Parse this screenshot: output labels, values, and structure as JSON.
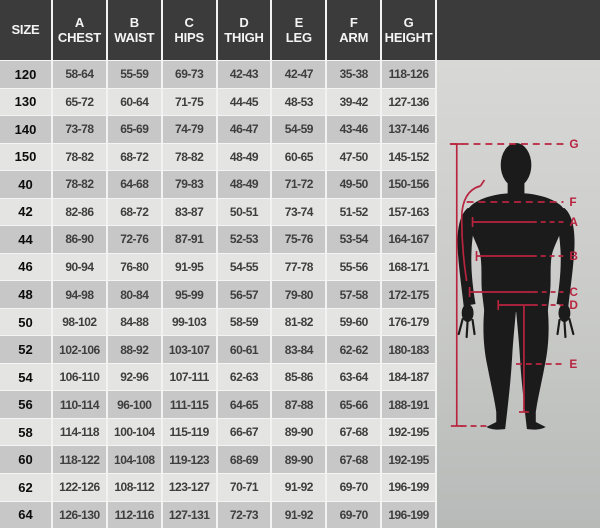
{
  "table": {
    "columns": [
      {
        "letter": "",
        "name": "SIZE"
      },
      {
        "letter": "A",
        "name": "CHEST"
      },
      {
        "letter": "B",
        "name": "WAIST"
      },
      {
        "letter": "C",
        "name": "HIPS"
      },
      {
        "letter": "D",
        "name": "THIGH"
      },
      {
        "letter": "E",
        "name": "LEG"
      },
      {
        "letter": "F",
        "name": "ARM"
      },
      {
        "letter": "G",
        "name": "HEIGHT"
      }
    ],
    "rows": [
      {
        "size": "120",
        "values": [
          "58-64",
          "55-59",
          "69-73",
          "42-43",
          "42-47",
          "35-38",
          "118-126"
        ]
      },
      {
        "size": "130",
        "values": [
          "65-72",
          "60-64",
          "71-75",
          "44-45",
          "48-53",
          "39-42",
          "127-136"
        ]
      },
      {
        "size": "140",
        "values": [
          "73-78",
          "65-69",
          "74-79",
          "46-47",
          "54-59",
          "43-46",
          "137-146"
        ]
      },
      {
        "size": "150",
        "values": [
          "78-82",
          "68-72",
          "78-82",
          "48-49",
          "60-65",
          "47-50",
          "145-152"
        ]
      },
      {
        "size": "40",
        "values": [
          "78-82",
          "64-68",
          "79-83",
          "48-49",
          "71-72",
          "49-50",
          "150-156"
        ]
      },
      {
        "size": "42",
        "values": [
          "82-86",
          "68-72",
          "83-87",
          "50-51",
          "73-74",
          "51-52",
          "157-163"
        ]
      },
      {
        "size": "44",
        "values": [
          "86-90",
          "72-76",
          "87-91",
          "52-53",
          "75-76",
          "53-54",
          "164-167"
        ]
      },
      {
        "size": "46",
        "values": [
          "90-94",
          "76-80",
          "91-95",
          "54-55",
          "77-78",
          "55-56",
          "168-171"
        ]
      },
      {
        "size": "48",
        "values": [
          "94-98",
          "80-84",
          "95-99",
          "56-57",
          "79-80",
          "57-58",
          "172-175"
        ]
      },
      {
        "size": "50",
        "values": [
          "98-102",
          "84-88",
          "99-103",
          "58-59",
          "81-82",
          "59-60",
          "176-179"
        ]
      },
      {
        "size": "52",
        "values": [
          "102-106",
          "88-92",
          "103-107",
          "60-61",
          "83-84",
          "62-62",
          "180-183"
        ]
      },
      {
        "size": "54",
        "values": [
          "106-110",
          "92-96",
          "107-111",
          "62-63",
          "85-86",
          "63-64",
          "184-187"
        ]
      },
      {
        "size": "56",
        "values": [
          "110-114",
          "96-100",
          "111-115",
          "64-65",
          "87-88",
          "65-66",
          "188-191"
        ]
      },
      {
        "size": "58",
        "values": [
          "114-118",
          "100-104",
          "115-119",
          "66-67",
          "89-90",
          "67-68",
          "192-195"
        ]
      },
      {
        "size": "60",
        "values": [
          "118-122",
          "104-108",
          "119-123",
          "68-69",
          "89-90",
          "67-68",
          "192-195"
        ]
      },
      {
        "size": "62",
        "values": [
          "122-126",
          "108-112",
          "123-127",
          "70-71",
          "91-92",
          "69-70",
          "196-199"
        ]
      },
      {
        "size": "64",
        "values": [
          "126-130",
          "112-116",
          "127-131",
          "72-73",
          "91-92",
          "69-70",
          "196-199"
        ]
      }
    ]
  },
  "figure": {
    "markers": [
      {
        "label": "G"
      },
      {
        "label": "F"
      },
      {
        "label": "A"
      },
      {
        "label": "B"
      },
      {
        "label": "C"
      },
      {
        "label": "D"
      },
      {
        "label": "E"
      }
    ]
  },
  "colors": {
    "header_bg": "#3b3b3b",
    "row_dark": "#c7c7c7",
    "row_light": "#e4e4e3",
    "accent_red": "#b8253f",
    "silhouette": "#1b1b1b",
    "separator": "#f2f2f2"
  },
  "chart_data": {
    "type": "table",
    "title": "Garment size chart with body measurement diagram",
    "columns": [
      "SIZE",
      "A CHEST",
      "B WAIST",
      "C HIPS",
      "D THIGH",
      "E LEG",
      "F ARM",
      "G HEIGHT"
    ],
    "rows": [
      [
        "120",
        "58-64",
        "55-59",
        "69-73",
        "42-43",
        "42-47",
        "35-38",
        "118-126"
      ],
      [
        "130",
        "65-72",
        "60-64",
        "71-75",
        "44-45",
        "48-53",
        "39-42",
        "127-136"
      ],
      [
        "140",
        "73-78",
        "65-69",
        "74-79",
        "46-47",
        "54-59",
        "43-46",
        "137-146"
      ],
      [
        "150",
        "78-82",
        "68-72",
        "78-82",
        "48-49",
        "60-65",
        "47-50",
        "145-152"
      ],
      [
        "40",
        "78-82",
        "64-68",
        "79-83",
        "48-49",
        "71-72",
        "49-50",
        "150-156"
      ],
      [
        "42",
        "82-86",
        "68-72",
        "83-87",
        "50-51",
        "73-74",
        "51-52",
        "157-163"
      ],
      [
        "44",
        "86-90",
        "72-76",
        "87-91",
        "52-53",
        "75-76",
        "53-54",
        "164-167"
      ],
      [
        "46",
        "90-94",
        "76-80",
        "91-95",
        "54-55",
        "77-78",
        "55-56",
        "168-171"
      ],
      [
        "48",
        "94-98",
        "80-84",
        "95-99",
        "56-57",
        "79-80",
        "57-58",
        "172-175"
      ],
      [
        "50",
        "98-102",
        "84-88",
        "99-103",
        "58-59",
        "81-82",
        "59-60",
        "176-179"
      ],
      [
        "52",
        "102-106",
        "88-92",
        "103-107",
        "60-61",
        "83-84",
        "62-62",
        "180-183"
      ],
      [
        "54",
        "106-110",
        "92-96",
        "107-111",
        "62-63",
        "85-86",
        "63-64",
        "184-187"
      ],
      [
        "56",
        "110-114",
        "96-100",
        "111-115",
        "64-65",
        "87-88",
        "65-66",
        "188-191"
      ],
      [
        "58",
        "114-118",
        "100-104",
        "115-119",
        "66-67",
        "89-90",
        "67-68",
        "192-195"
      ],
      [
        "60",
        "118-122",
        "104-108",
        "119-123",
        "68-69",
        "89-90",
        "67-68",
        "192-195"
      ],
      [
        "62",
        "122-126",
        "108-112",
        "123-127",
        "70-71",
        "91-92",
        "69-70",
        "196-199"
      ],
      [
        "64",
        "126-130",
        "112-116",
        "127-131",
        "72-73",
        "91-92",
        "69-70",
        "196-199"
      ]
    ],
    "diagram_markers": [
      "G height",
      "F arm",
      "A chest",
      "B waist",
      "C hips",
      "D thigh",
      "E leg"
    ]
  }
}
